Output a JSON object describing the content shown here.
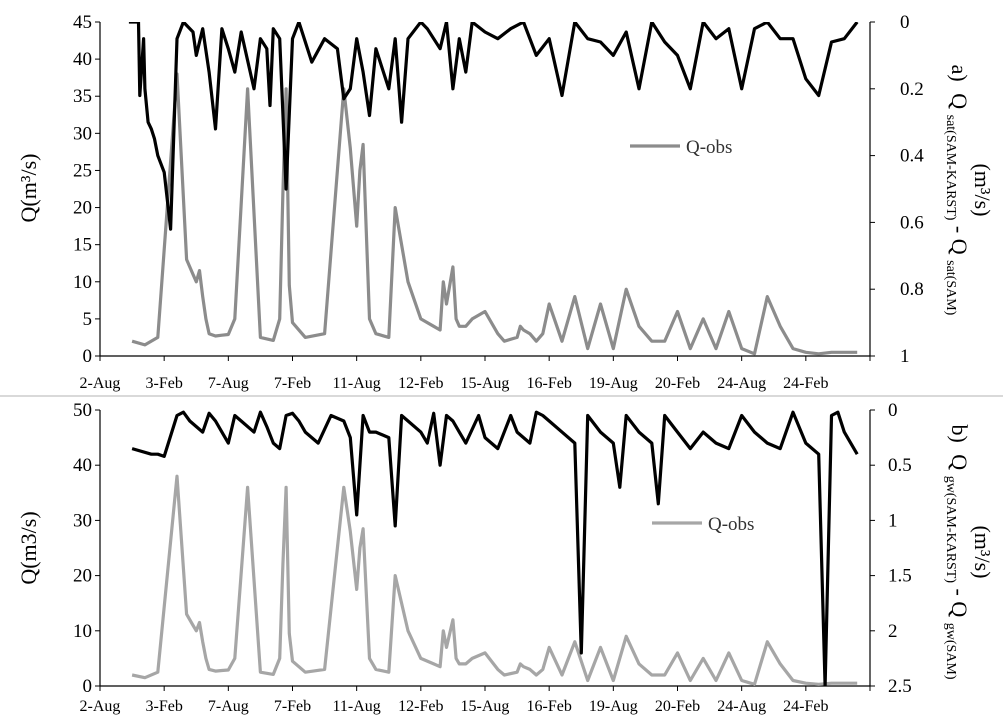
{
  "chart_data": [
    {
      "panel": "a)",
      "type": "line",
      "categories": [
        "2-Aug",
        "3-Feb",
        "7-Aug",
        "7-Feb",
        "11-Aug",
        "12-Feb",
        "15-Aug",
        "16-Feb",
        "19-Aug",
        "20-Feb",
        "24-Aug",
        "24-Feb"
      ],
      "ylabel": "Q(m³/s)",
      "y2label_main": "Q",
      "y2label_sub1": "sat(SAM-KARST)",
      "y2label_mid": " - Q",
      "y2label_sub2": "sat(SAM)",
      "y2label_unit": "(m³/s)",
      "ylim": [
        0,
        45
      ],
      "y2lim": [
        1,
        0
      ],
      "y_ticks": [
        0,
        5,
        10,
        15,
        20,
        25,
        30,
        35,
        40,
        45
      ],
      "y2_ticks": [
        0,
        0.2,
        0.4,
        0.6,
        0.8,
        1
      ],
      "legend": "Q-obs",
      "colors": {
        "qobs": "#8c8c8c",
        "diff": "#000000"
      },
      "series": [
        {
          "name": "Q-obs",
          "axis": "left",
          "x": [
            0.5,
            0.7,
            0.9,
            1.2,
            1.35,
            1.45,
            1.5,
            1.55,
            1.6,
            1.65,
            1.7,
            1.8,
            1.9,
            2.0,
            2.1,
            2.3,
            2.5,
            2.7,
            2.8,
            2.85,
            2.9,
            2.95,
            3.0,
            3.2,
            3.5,
            3.8,
            3.9,
            4.0,
            4.05,
            4.1,
            4.2,
            4.3,
            4.5,
            4.6,
            4.8,
            5.0,
            5.2,
            5.3,
            5.35,
            5.4,
            5.5,
            5.55,
            5.6,
            5.7,
            5.8,
            6.0,
            6.2,
            6.3,
            6.5,
            6.55,
            6.6,
            6.7,
            6.8,
            6.9,
            7.0,
            7.2,
            7.4,
            7.6,
            7.8,
            8.0,
            8.2,
            8.4,
            8.6,
            8.8,
            9.0,
            9.2,
            9.4,
            9.6,
            9.8,
            10.0,
            10.2,
            10.4,
            10.6,
            10.8,
            11.0,
            11.2,
            11.4,
            11.6,
            11.8
          ],
          "values": [
            2,
            1.5,
            2.5,
            38,
            13,
            11,
            10,
            11.5,
            8,
            5,
            3,
            2.7,
            2.8,
            2.9,
            5,
            36,
            2.5,
            2.1,
            5,
            22,
            36,
            9.5,
            4.5,
            2.5,
            3,
            36,
            28,
            17.5,
            25,
            28.5,
            5,
            3,
            2.5,
            20,
            10,
            5,
            4,
            3.5,
            10,
            7,
            12,
            5,
            4,
            4,
            5,
            6,
            3,
            2,
            2.5,
            4,
            3.5,
            3,
            2,
            3,
            7,
            2,
            8,
            1,
            7,
            1,
            9,
            4,
            2,
            2,
            6,
            1,
            5,
            1,
            6,
            1,
            0.3,
            8,
            4,
            1,
            0.5,
            0.3,
            0.5,
            0.5,
            0.5
          ]
        },
        {
          "name": "",
          "axis": "right",
          "x": [
            0.45,
            0.6,
            0.62,
            0.68,
            0.7,
            0.75,
            0.8,
            0.85,
            0.9,
            1.0,
            1.1,
            1.2,
            1.3,
            1.45,
            1.5,
            1.6,
            1.7,
            1.8,
            1.9,
            2.0,
            2.1,
            2.2,
            2.4,
            2.5,
            2.6,
            2.65,
            2.7,
            2.8,
            2.9,
            3.0,
            3.1,
            3.3,
            3.5,
            3.7,
            3.8,
            3.9,
            4.0,
            4.1,
            4.2,
            4.3,
            4.5,
            4.6,
            4.7,
            4.8,
            5.0,
            5.1,
            5.2,
            5.3,
            5.4,
            5.5,
            5.6,
            5.7,
            5.8,
            6.0,
            6.2,
            6.4,
            6.6,
            6.8,
            7.0,
            7.2,
            7.4,
            7.6,
            7.8,
            8.0,
            8.2,
            8.4,
            8.6,
            8.8,
            9.0,
            9.2,
            9.4,
            9.6,
            9.8,
            10.0,
            10.2,
            10.4,
            10.6,
            10.8,
            11.0,
            11.2,
            11.4,
            11.6,
            11.8
          ],
          "values": [
            0,
            0,
            0.22,
            0.05,
            0.2,
            0.3,
            0.32,
            0.35,
            0.4,
            0.45,
            0.62,
            0.05,
            0,
            0.03,
            0.1,
            0.02,
            0.15,
            0.32,
            0.02,
            0.08,
            0.15,
            0.03,
            0.2,
            0.05,
            0.08,
            0.25,
            0.02,
            0.05,
            0.5,
            0.05,
            0,
            0.12,
            0.05,
            0.08,
            0.23,
            0.2,
            0.05,
            0.15,
            0.28,
            0.08,
            0.2,
            0.05,
            0.3,
            0.05,
            0,
            0.02,
            0.05,
            0.08,
            0,
            0.2,
            0.05,
            0.15,
            0,
            0.03,
            0.05,
            0.02,
            0,
            0.1,
            0.05,
            0.22,
            0,
            0.05,
            0.06,
            0.1,
            0.03,
            0.2,
            0,
            0.06,
            0.1,
            0.2,
            0,
            0.05,
            0.02,
            0.2,
            0.02,
            0,
            0.05,
            0.05,
            0.17,
            0.22,
            0.06,
            0.05,
            0
          ]
        }
      ]
    },
    {
      "panel": "b)",
      "type": "line",
      "categories": [
        "2-Aug",
        "3-Feb",
        "7-Aug",
        "7-Feb",
        "11-Aug",
        "12-Feb",
        "15-Aug",
        "16-Feb",
        "19-Aug",
        "20-Feb",
        "24-Aug",
        "24-Feb"
      ],
      "ylabel": "Q(m3/s)",
      "y2label_main": "Q",
      "y2label_sub1": "gw(SAM-KARST)",
      "y2label_mid": " - Q",
      "y2label_sub2": "gw(SAM)",
      "y2label_unit": "(m³/s)",
      "ylim": [
        0,
        50
      ],
      "y2lim": [
        2.5,
        0
      ],
      "y_ticks": [
        0,
        10,
        20,
        30,
        40,
        50
      ],
      "y2_ticks": [
        0,
        0.5,
        1,
        1.5,
        2,
        2.5
      ],
      "legend": "Q-obs",
      "colors": {
        "qobs": "#a6a6a6",
        "diff": "#000000"
      },
      "series": [
        {
          "name": "Q-obs",
          "axis": "left",
          "x": [
            0.5,
            0.7,
            0.9,
            1.2,
            1.35,
            1.45,
            1.5,
            1.55,
            1.6,
            1.65,
            1.7,
            1.8,
            1.9,
            2.0,
            2.1,
            2.3,
            2.5,
            2.7,
            2.8,
            2.85,
            2.9,
            2.95,
            3.0,
            3.2,
            3.5,
            3.8,
            3.9,
            4.0,
            4.05,
            4.1,
            4.2,
            4.3,
            4.5,
            4.6,
            4.8,
            5.0,
            5.2,
            5.3,
            5.35,
            5.4,
            5.5,
            5.55,
            5.6,
            5.7,
            5.8,
            6.0,
            6.2,
            6.3,
            6.5,
            6.55,
            6.6,
            6.7,
            6.8,
            6.9,
            7.0,
            7.2,
            7.4,
            7.6,
            7.8,
            8.0,
            8.2,
            8.4,
            8.6,
            8.8,
            9.0,
            9.2,
            9.4,
            9.6,
            9.8,
            10.0,
            10.2,
            10.4,
            10.6,
            10.8,
            11.0,
            11.2,
            11.4,
            11.6,
            11.8
          ],
          "values": [
            2,
            1.5,
            2.5,
            38,
            13,
            11,
            10,
            11.5,
            8,
            5,
            3,
            2.7,
            2.8,
            2.9,
            5,
            36,
            2.5,
            2.1,
            5,
            22,
            36,
            9.5,
            4.5,
            2.5,
            3,
            36,
            28,
            17.5,
            25,
            28.5,
            5,
            3,
            2.5,
            20,
            10,
            5,
            4,
            3.5,
            10,
            7,
            12,
            5,
            4,
            4,
            5,
            6,
            3,
            2,
            2.5,
            4,
            3.5,
            3,
            2,
            3,
            7,
            2,
            8,
            1,
            7,
            1,
            9,
            4,
            2,
            2,
            6,
            1,
            5,
            1,
            6,
            1,
            0.3,
            8,
            4,
            1,
            0.5,
            0.3,
            0.5,
            0.5,
            0.5
          ]
        },
        {
          "name": "",
          "axis": "right",
          "x": [
            0.5,
            0.8,
            0.9,
            1.0,
            1.2,
            1.3,
            1.4,
            1.6,
            1.7,
            1.8,
            1.9,
            2.0,
            2.1,
            2.2,
            2.4,
            2.5,
            2.6,
            2.7,
            2.8,
            2.9,
            3.0,
            3.1,
            3.2,
            3.4,
            3.6,
            3.8,
            3.9,
            4.0,
            4.1,
            4.2,
            4.3,
            4.5,
            4.6,
            4.7,
            4.8,
            5.0,
            5.1,
            5.2,
            5.3,
            5.4,
            5.5,
            5.6,
            5.7,
            5.9,
            6.0,
            6.2,
            6.4,
            6.5,
            6.7,
            6.8,
            6.9,
            7.0,
            7.2,
            7.4,
            7.5,
            7.6,
            7.8,
            8.0,
            8.1,
            8.2,
            8.4,
            8.6,
            8.7,
            8.8,
            9.0,
            9.2,
            9.4,
            9.6,
            9.8,
            10.0,
            10.2,
            10.4,
            10.6,
            10.8,
            11.0,
            11.2,
            11.3,
            11.4,
            11.5,
            11.6,
            11.8
          ],
          "values": [
            0.35,
            0.4,
            0.4,
            0.42,
            0.05,
            0.02,
            0.1,
            0.2,
            0.03,
            0.1,
            0.2,
            0.3,
            0.05,
            0.1,
            0.2,
            0.02,
            0.15,
            0.3,
            0.35,
            0.05,
            0.03,
            0.1,
            0.2,
            0.3,
            0.05,
            0.1,
            0.25,
            0.95,
            0.05,
            0.2,
            0.2,
            0.25,
            1.05,
            0.05,
            0.1,
            0.2,
            0.3,
            0.03,
            0.5,
            0.05,
            0.1,
            0.2,
            0.3,
            0.05,
            0.25,
            0.35,
            0.05,
            0.2,
            0.3,
            0.02,
            0.05,
            0.1,
            0.2,
            0.3,
            2.2,
            0.05,
            0.2,
            0.3,
            0.7,
            0.05,
            0.2,
            0.3,
            0.85,
            0.05,
            0.2,
            0.35,
            0.2,
            0.3,
            0.35,
            0.05,
            0.2,
            0.3,
            0.35,
            0.02,
            0.3,
            0.4,
            2.5,
            0.05,
            0.02,
            0.2,
            0.4
          ]
        }
      ]
    }
  ]
}
